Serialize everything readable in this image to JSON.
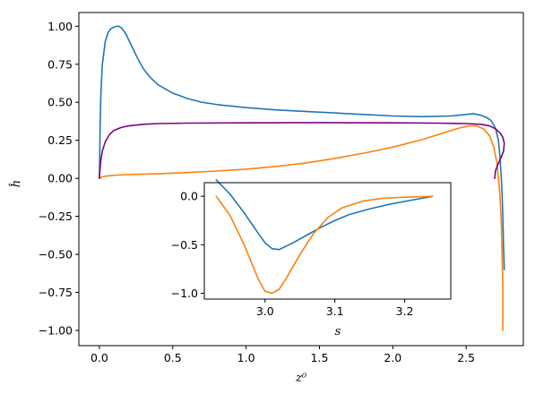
{
  "chart_data": [
    {
      "type": "line",
      "title": "",
      "xlabel": "z⁰",
      "ylabel": "ĥ",
      "xlim": [
        -0.14,
        2.89
      ],
      "ylim": [
        -1.1,
        1.09
      ],
      "xticks": [
        0.0,
        0.5,
        1.0,
        1.5,
        2.0,
        2.5
      ],
      "xtick_labels": [
        "0.0",
        "0.5",
        "1.0",
        "1.5",
        "2.0",
        "2.5"
      ],
      "yticks": [
        1.0,
        0.75,
        0.5,
        0.25,
        0.0,
        -0.25,
        -0.5,
        -0.75,
        -1.0
      ],
      "ytick_labels": [
        "1.00",
        "0.75",
        "0.50",
        "0.25",
        "0.00",
        "−0.25",
        "−0.50",
        "−0.75",
        "−1.00"
      ],
      "grid": false,
      "series": [
        {
          "color": "#1f77b4",
          "x": [
            0.0,
            0.005,
            0.01,
            0.02,
            0.04,
            0.06,
            0.08,
            0.1,
            0.12,
            0.13,
            0.15,
            0.18,
            0.22,
            0.26,
            0.3,
            0.35,
            0.4,
            0.5,
            0.6,
            0.7,
            0.8,
            0.9,
            1.0,
            1.2,
            1.4,
            1.6,
            1.8,
            2.0,
            2.2,
            2.4,
            2.5,
            2.55,
            2.6,
            2.64,
            2.67,
            2.7,
            2.72,
            2.73,
            2.74,
            2.745,
            2.75,
            2.755,
            2.76,
            2.76
          ],
          "y": [
            0.0,
            0.35,
            0.55,
            0.75,
            0.9,
            0.96,
            0.985,
            0.995,
            1.0,
            1.0,
            0.99,
            0.95,
            0.87,
            0.79,
            0.72,
            0.66,
            0.615,
            0.56,
            0.525,
            0.5,
            0.485,
            0.475,
            0.465,
            0.45,
            0.44,
            0.43,
            0.42,
            0.41,
            0.405,
            0.41,
            0.42,
            0.425,
            0.415,
            0.4,
            0.38,
            0.33,
            0.25,
            0.15,
            0.0,
            -0.1,
            -0.25,
            -0.45,
            -0.6,
            -0.6
          ]
        },
        {
          "color": "#ff7f0e",
          "x": [
            0.0,
            0.02,
            0.05,
            0.1,
            0.2,
            0.4,
            0.6,
            0.8,
            1.0,
            1.2,
            1.4,
            1.6,
            1.8,
            2.0,
            2.2,
            2.35,
            2.45,
            2.52,
            2.57,
            2.62,
            2.66,
            2.69,
            2.71,
            2.73,
            2.74,
            2.75,
            2.75
          ],
          "y": [
            0.0,
            0.01,
            0.015,
            0.02,
            0.025,
            0.03,
            0.038,
            0.048,
            0.06,
            0.078,
            0.1,
            0.13,
            0.165,
            0.205,
            0.255,
            0.3,
            0.33,
            0.345,
            0.345,
            0.325,
            0.28,
            0.2,
            0.1,
            -0.1,
            -0.3,
            -0.7,
            -1.0
          ]
        },
        {
          "color": "#800080",
          "x": [
            0.0,
            0.003,
            0.01,
            0.02,
            0.04,
            0.07,
            0.1,
            0.15,
            0.2,
            0.3,
            0.4,
            0.6,
            1.0,
            1.5,
            2.0,
            2.3,
            2.5,
            2.6,
            2.66,
            2.7,
            2.73,
            2.75,
            2.76,
            2.755,
            2.74,
            2.72,
            2.7,
            2.695
          ],
          "y": [
            0.0,
            0.05,
            0.12,
            0.18,
            0.24,
            0.29,
            0.315,
            0.335,
            0.345,
            0.355,
            0.36,
            0.363,
            0.365,
            0.366,
            0.365,
            0.363,
            0.36,
            0.355,
            0.345,
            0.325,
            0.3,
            0.27,
            0.23,
            0.18,
            0.14,
            0.1,
            0.05,
            0.0
          ]
        }
      ]
    },
    {
      "type": "line",
      "title": "",
      "xlabel": "s",
      "ylabel": "",
      "xlim": [
        2.913,
        3.266
      ],
      "ylim": [
        -1.06,
        0.14
      ],
      "xticks": [
        3.0,
        3.1,
        3.2
      ],
      "xtick_labels": [
        "3.0",
        "3.1",
        "3.2"
      ],
      "yticks": [
        0.0,
        -0.5,
        -1.0
      ],
      "ytick_labels": [
        "0.0",
        "−0.5",
        "−1.0"
      ],
      "grid": false,
      "series": [
        {
          "color": "#1f77b4",
          "x": [
            2.93,
            2.95,
            2.97,
            2.99,
            3.0,
            3.01,
            3.02,
            3.04,
            3.06,
            3.08,
            3.1,
            3.12,
            3.15,
            3.18,
            3.21,
            3.24
          ],
          "y": [
            0.17,
            0.02,
            -0.17,
            -0.38,
            -0.48,
            -0.54,
            -0.55,
            -0.48,
            -0.4,
            -0.32,
            -0.25,
            -0.19,
            -0.13,
            -0.08,
            -0.04,
            0.0
          ]
        },
        {
          "color": "#ff7f0e",
          "x": [
            2.93,
            2.95,
            2.97,
            2.99,
            3.0,
            3.01,
            3.02,
            3.03,
            3.05,
            3.07,
            3.09,
            3.11,
            3.14,
            3.17,
            3.2,
            3.24
          ],
          "y": [
            0.0,
            -0.2,
            -0.5,
            -0.85,
            -0.98,
            -1.0,
            -0.96,
            -0.85,
            -0.6,
            -0.38,
            -0.22,
            -0.12,
            -0.05,
            -0.02,
            -0.01,
            0.0
          ]
        }
      ]
    }
  ]
}
